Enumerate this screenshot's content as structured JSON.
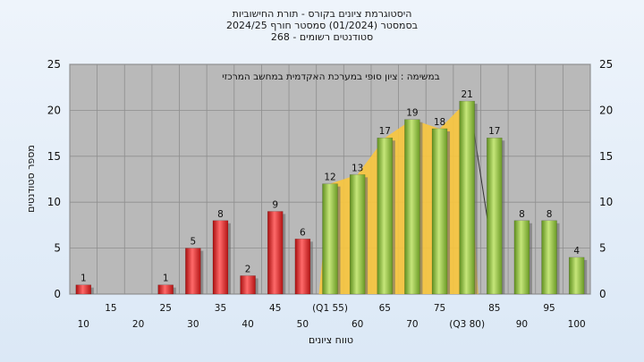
{
  "chart_data": {
    "type": "bar",
    "title_lines": [
      "היסטוגרמת ציונים בקורס - תורת החישוביות",
      "בסמסטר  (01/2024)  סמסטר חורף  2024/25",
      "סטודנטים רשומים - 268"
    ],
    "subtitle": "במשימה : ציון סופי במערכת האקדמית במחשב המרכזי",
    "xlabel": "טווח ציונים",
    "ylabel": "מספר סטודנטים",
    "ylim": [
      0,
      25
    ],
    "yticks": [
      0,
      5,
      10,
      15,
      20,
      25
    ],
    "grid": true,
    "categories": [
      10,
      15,
      20,
      25,
      30,
      35,
      40,
      45,
      50,
      55,
      60,
      65,
      70,
      75,
      80,
      85,
      90,
      95,
      100
    ],
    "x_tick_labels": [
      "10",
      "15",
      "20",
      "25",
      "30",
      "35",
      "40",
      "45",
      "50",
      "(Q1 55)",
      "60",
      "65",
      "70",
      "75",
      "(Q3 80)",
      "85",
      "90",
      "95",
      "100"
    ],
    "values": [
      1,
      0,
      0,
      1,
      5,
      8,
      2,
      9,
      6,
      12,
      13,
      17,
      19,
      18,
      21,
      17,
      8,
      8,
      4
    ],
    "value_labels": [
      "1",
      "",
      "",
      "1",
      "5",
      "8",
      "2",
      "9",
      "6",
      "12",
      "13",
      "17",
      "19",
      "18",
      "21",
      "17",
      "8",
      "8",
      "4"
    ],
    "bar_colors": [
      "red",
      "red",
      "red",
      "red",
      "red",
      "red",
      "red",
      "red",
      "red",
      "green",
      "green",
      "green",
      "green",
      "green",
      "green",
      "green",
      "green",
      "green",
      "green"
    ],
    "interquartile_band": {
      "from": 55,
      "to": 80,
      "color": "#f5c542"
    },
    "colors": {
      "red_bar": "#d42a2a",
      "green_bar": "#8dc63f",
      "plot_bg": "#b9b9b9",
      "band": "#f5c542"
    }
  }
}
